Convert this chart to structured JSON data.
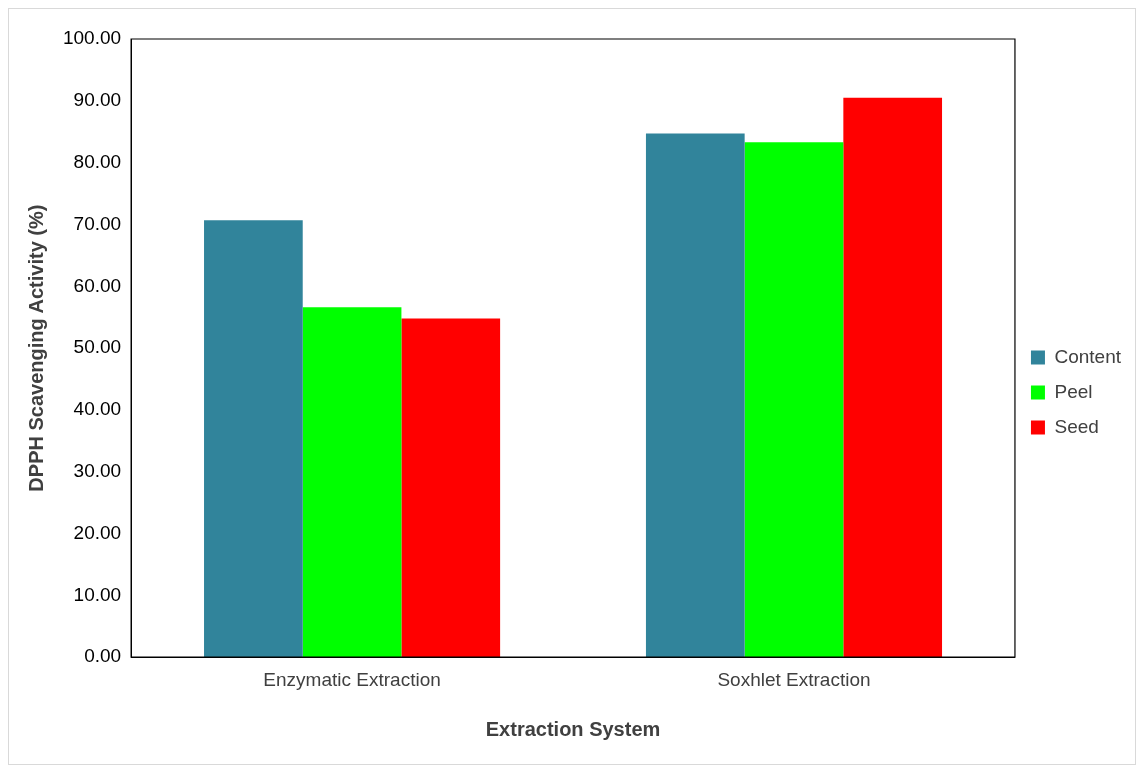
{
  "chart_data": {
    "type": "bar",
    "xlabel": "Extraction System",
    "ylabel": "DPPH Scavenging Activity (%)",
    "categories": [
      "Enzymatic Extraction",
      "Soxhlet Extraction"
    ],
    "series": [
      {
        "name": "Content",
        "color": "#31849b",
        "values": [
          70.7,
          84.7
        ]
      },
      {
        "name": "Peel",
        "color": "#00ff00",
        "values": [
          56.6,
          83.3
        ]
      },
      {
        "name": "Seed",
        "color": "#ff0000",
        "values": [
          54.8,
          90.5
        ]
      }
    ],
    "ylim": [
      0,
      100
    ],
    "yticks": [
      {
        "value": 0,
        "label": "0.00"
      },
      {
        "value": 10,
        "label": "10.00"
      },
      {
        "value": 20,
        "label": "20.00"
      },
      {
        "value": 30,
        "label": "30.00"
      },
      {
        "value": 40,
        "label": "40.00"
      },
      {
        "value": 50,
        "label": "50.00"
      },
      {
        "value": 60,
        "label": "60.00"
      },
      {
        "value": 70,
        "label": "70.00"
      },
      {
        "value": 80,
        "label": "80.00"
      },
      {
        "value": 90,
        "label": "90.00"
      },
      {
        "value": 100,
        "label": "100.00"
      }
    ],
    "grid": false,
    "legend": "right"
  }
}
